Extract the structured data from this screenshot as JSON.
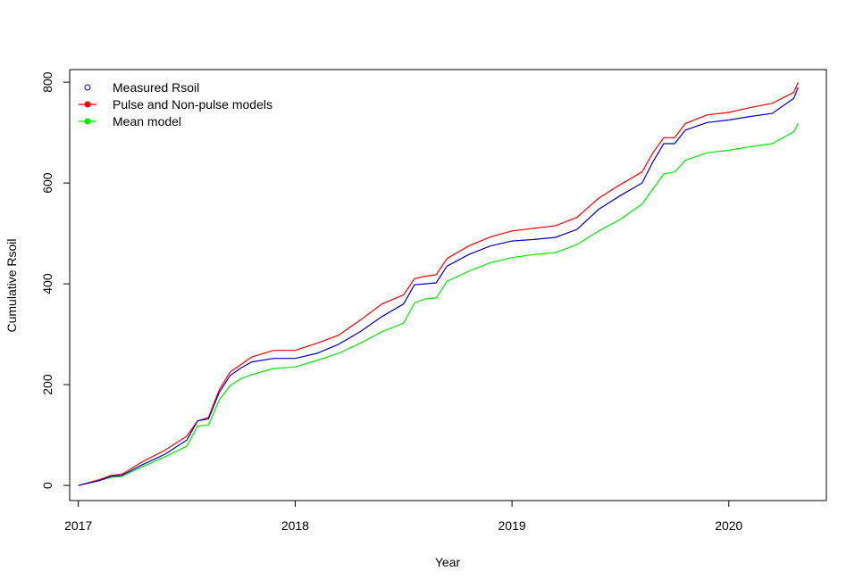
{
  "chart_data": {
    "type": "line",
    "xlabel": "Year",
    "ylabel": "Cumulative Rsoil",
    "xlim": [
      2016.96,
      2020.45
    ],
    "ylim": [
      -30,
      825
    ],
    "x_ticks": [
      2017,
      2018,
      2019,
      2020
    ],
    "x_tick_labels": [
      "2017",
      "2018",
      "2019",
      "2020"
    ],
    "y_ticks": [
      0,
      200,
      400,
      600,
      800
    ],
    "y_tick_labels": [
      "0",
      "200",
      "400",
      "600",
      "800"
    ],
    "grid": false,
    "legend_position": "top-left",
    "legend": [
      {
        "name": "Measured Rsoil",
        "marker": "open-circle",
        "line": false,
        "color": "#0000cc"
      },
      {
        "name": "Pulse and Non-pulse models",
        "marker": "filled-circle",
        "line": true,
        "color": "#ff0000"
      },
      {
        "name": "Mean model",
        "marker": "filled-circle",
        "line": true,
        "color": "#00ee00"
      }
    ],
    "series": [
      {
        "name": "Measured Rsoil",
        "color": "#0000cc",
        "x": [
          2017.0,
          2017.1,
          2017.15,
          2017.2,
          2017.3,
          2017.4,
          2017.5,
          2017.55,
          2017.6,
          2017.65,
          2017.7,
          2017.75,
          2017.8,
          2017.9,
          2018.0,
          2018.1,
          2018.2,
          2018.3,
          2018.4,
          2018.5,
          2018.55,
          2018.6,
          2018.65,
          2018.7,
          2018.8,
          2018.9,
          2019.0,
          2019.1,
          2019.2,
          2019.3,
          2019.4,
          2019.5,
          2019.6,
          2019.65,
          2019.7,
          2019.75,
          2019.8,
          2019.9,
          2020.0,
          2020.1,
          2020.2,
          2020.3,
          2020.32
        ],
        "y": [
          0,
          10,
          18,
          20,
          42,
          62,
          90,
          128,
          132,
          185,
          218,
          233,
          245,
          252,
          252,
          262,
          280,
          305,
          335,
          360,
          398,
          400,
          402,
          435,
          458,
          475,
          485,
          488,
          492,
          508,
          548,
          575,
          600,
          642,
          678,
          678,
          705,
          720,
          725,
          732,
          738,
          768,
          790
        ]
      },
      {
        "name": "Pulse and Non-pulse models",
        "color": "#ff0000",
        "x": [
          2017.0,
          2017.1,
          2017.15,
          2017.2,
          2017.3,
          2017.4,
          2017.5,
          2017.55,
          2017.6,
          2017.65,
          2017.7,
          2017.75,
          2017.8,
          2017.9,
          2018.0,
          2018.1,
          2018.2,
          2018.3,
          2018.4,
          2018.5,
          2018.55,
          2018.6,
          2018.65,
          2018.7,
          2018.8,
          2018.9,
          2019.0,
          2019.1,
          2019.2,
          2019.3,
          2019.4,
          2019.5,
          2019.6,
          2019.65,
          2019.7,
          2019.75,
          2019.8,
          2019.9,
          2020.0,
          2020.1,
          2020.2,
          2020.3,
          2020.32
        ],
        "y": [
          0,
          12,
          20,
          22,
          48,
          70,
          98,
          128,
          135,
          190,
          225,
          240,
          255,
          268,
          268,
          282,
          298,
          328,
          360,
          378,
          410,
          415,
          418,
          450,
          475,
          493,
          505,
          510,
          515,
          532,
          570,
          597,
          622,
          660,
          690,
          690,
          718,
          735,
          740,
          750,
          758,
          780,
          800
        ]
      },
      {
        "name": "Mean model",
        "color": "#00ee00",
        "x": [
          2017.0,
          2017.1,
          2017.15,
          2017.2,
          2017.3,
          2017.4,
          2017.5,
          2017.55,
          2017.6,
          2017.65,
          2017.7,
          2017.75,
          2017.8,
          2017.9,
          2018.0,
          2018.1,
          2018.2,
          2018.3,
          2018.4,
          2018.5,
          2018.55,
          2018.6,
          2018.65,
          2018.7,
          2018.8,
          2018.9,
          2019.0,
          2019.1,
          2019.2,
          2019.3,
          2019.4,
          2019.5,
          2019.6,
          2019.65,
          2019.7,
          2019.75,
          2019.8,
          2019.9,
          2020.0,
          2020.1,
          2020.2,
          2020.3,
          2020.32
        ],
        "y": [
          0,
          10,
          16,
          18,
          38,
          57,
          78,
          118,
          120,
          170,
          198,
          212,
          220,
          232,
          235,
          248,
          262,
          282,
          305,
          322,
          362,
          370,
          372,
          405,
          425,
          442,
          452,
          458,
          462,
          478,
          505,
          528,
          558,
          588,
          618,
          622,
          645,
          660,
          665,
          672,
          678,
          702,
          718
        ]
      }
    ]
  }
}
